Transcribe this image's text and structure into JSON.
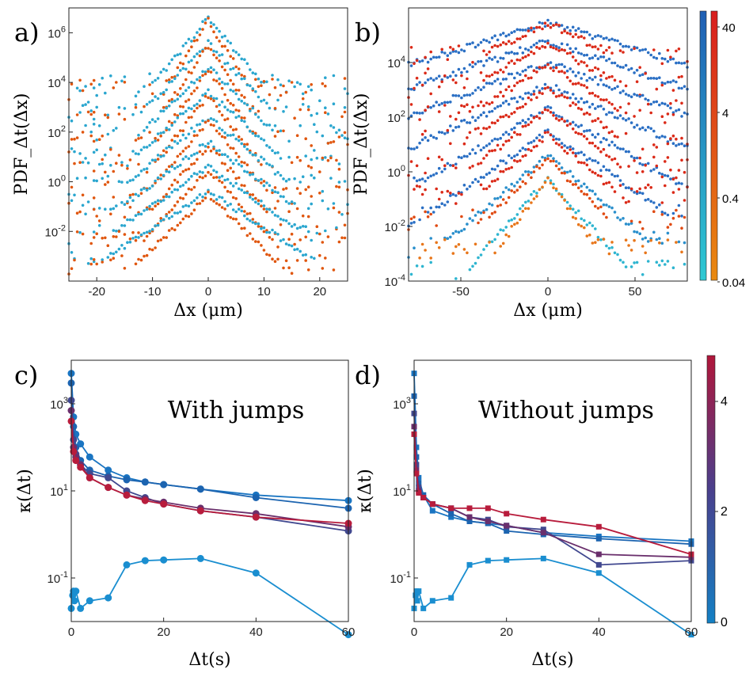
{
  "figure": {
    "colorbar_b": {
      "ticks": [
        "40",
        "4",
        "0.4",
        "0.04"
      ],
      "blue_top": "#1f5fb4",
      "blue_bottom": "#2ec9d3",
      "red_top": "#d81e1e",
      "red_bottom": "#e98a10"
    },
    "colorbar_cd": {
      "ticks": [
        "4",
        "2",
        "0"
      ],
      "top": "#b0163a",
      "mid": "#4a3f8c",
      "bottom": "#1380c4"
    }
  },
  "chart_data": [
    {
      "panel": "a)",
      "type": "scatter",
      "xlabel": "Δx (μm)",
      "ylabel": "PDF_Δt(Δx)",
      "xlim": [
        -25,
        25
      ],
      "ylim": [
        0.0001,
        10000000
      ],
      "yscale": "log",
      "xticks": [
        -20,
        -10,
        0,
        10,
        20
      ],
      "yticks": [
        "10^-2",
        "10^0",
        "10^2",
        "10^4",
        "10^6"
      ],
      "colors": {
        "blue_family": "#2aa6cf",
        "red_family": "#e0560e"
      },
      "series": [
        {
          "role": "curve",
          "color": "#2aa6cf",
          "peak": 4000000,
          "width": 1.6,
          "noise_floor": 10000
        },
        {
          "role": "curve",
          "color": "#e0560e",
          "peak": 3000000,
          "width": 1.2,
          "noise_floor": 8000
        },
        {
          "role": "curve",
          "color": "#2aa6cf",
          "peak": 400000,
          "width": 1.8,
          "noise_floor": 1000
        },
        {
          "role": "curve",
          "color": "#e0560e",
          "peak": 300000,
          "width": 1.3,
          "noise_floor": 600
        },
        {
          "role": "curve",
          "color": "#2aa6cf",
          "peak": 40000,
          "width": 2.0,
          "noise_floor": 100
        },
        {
          "role": "curve",
          "color": "#e0560e",
          "peak": 30000,
          "width": 1.4,
          "noise_floor": 60
        },
        {
          "role": "curve",
          "color": "#2aa6cf",
          "peak": 4000,
          "width": 2.2,
          "noise_floor": 10
        },
        {
          "role": "curve",
          "color": "#e0560e",
          "peak": 3000,
          "width": 1.5,
          "noise_floor": 6
        },
        {
          "role": "curve",
          "color": "#2aa6cf",
          "peak": 400,
          "width": 2.4,
          "noise_floor": 1
        },
        {
          "role": "curve",
          "color": "#e0560e",
          "peak": 300,
          "width": 1.6,
          "noise_floor": 0.5
        },
        {
          "role": "curve",
          "color": "#2aa6cf",
          "peak": 40,
          "width": 2.6,
          "noise_floor": 0.1
        },
        {
          "role": "curve",
          "color": "#e0560e",
          "peak": 30,
          "width": 1.7,
          "noise_floor": 0.05
        },
        {
          "role": "curve",
          "color": "#2aa6cf",
          "peak": 4,
          "width": 2.8,
          "noise_floor": 0.01
        },
        {
          "role": "curve",
          "color": "#e0560e",
          "peak": 3,
          "width": 1.8,
          "noise_floor": 0.005
        },
        {
          "role": "curve",
          "color": "#2aa6cf",
          "peak": 0.4,
          "width": 3.0,
          "noise_floor": 0.001
        },
        {
          "role": "curve",
          "color": "#e0560e",
          "peak": 0.3,
          "width": 2.0,
          "noise_floor": 0.0005
        }
      ]
    },
    {
      "panel": "b)",
      "type": "scatter",
      "xlabel": "Δx (μm)",
      "ylabel": "PDF_Δt(Δx)",
      "xlim": [
        -80,
        80
      ],
      "ylim": [
        0.0001,
        1000000
      ],
      "yscale": "log",
      "xticks": [
        -50,
        0,
        50
      ],
      "yticks": [
        "10^-4",
        "10^-2",
        "10^0",
        "10^2",
        "10^4"
      ],
      "colors": {
        "blue_family": "#2a6fc4",
        "red_family": "#db2a18"
      },
      "series": [
        {
          "role": "curve",
          "color": "#2a6fc4",
          "peak": 300000,
          "width": 22,
          "noise_floor": 3000
        },
        {
          "role": "curve",
          "color": "#db2a18",
          "peak": 280000,
          "width": 14,
          "noise_floor": 20000
        },
        {
          "role": "curve",
          "color": "#2a6fc4",
          "peak": 60000,
          "width": 20,
          "noise_floor": 300
        },
        {
          "role": "curve",
          "color": "#db2a18",
          "peak": 50000,
          "width": 12,
          "noise_floor": 2000
        },
        {
          "role": "curve",
          "color": "#2a6fc4",
          "peak": 10000,
          "width": 18,
          "noise_floor": 30
        },
        {
          "role": "curve",
          "color": "#db2a18",
          "peak": 8000,
          "width": 11,
          "noise_floor": 200
        },
        {
          "role": "curve",
          "color": "#2a6fc4",
          "peak": 1500,
          "width": 15,
          "noise_floor": 3
        },
        {
          "role": "curve",
          "color": "#db2a18",
          "peak": 1200,
          "width": 10,
          "noise_floor": 20
        },
        {
          "role": "curve",
          "color": "#2a6fc4",
          "peak": 200,
          "width": 12,
          "noise_floor": 0.3
        },
        {
          "role": "curve",
          "color": "#db2a18",
          "peak": 180,
          "width": 9,
          "noise_floor": 2
        },
        {
          "role": "curve",
          "color": "#2a6fc4",
          "peak": 30,
          "width": 10,
          "noise_floor": 0.03
        },
        {
          "role": "curve",
          "color": "#db2a18",
          "peak": 25,
          "width": 8,
          "noise_floor": 0.2
        },
        {
          "role": "curve",
          "color": "#2a8fcc",
          "peak": 4,
          "width": 8,
          "noise_floor": 0.003
        },
        {
          "role": "curve",
          "color": "#e04a12",
          "peak": 3,
          "width": 7,
          "noise_floor": 0.02
        },
        {
          "role": "curve",
          "color": "#2eb5d0",
          "peak": 0.6,
          "width": 6,
          "noise_floor": 0.0003
        },
        {
          "role": "curve",
          "color": "#e8761a",
          "peak": 0.5,
          "width": 5,
          "noise_floor": 0.002
        }
      ]
    },
    {
      "panel": "c)",
      "type": "line",
      "title": "With jumps",
      "xlabel": "Δt(s)",
      "ylabel": "κ(Δt)",
      "xlim": [
        0,
        60
      ],
      "ylim": [
        0.01,
        10000
      ],
      "yscale": "log",
      "xticks": [
        "0",
        "20",
        "40",
        "60"
      ],
      "yticks": [
        "10^-1",
        "10^1",
        "10^3"
      ],
      "marker": "circle",
      "series": [
        {
          "color": "#1a75c2",
          "x": [
            0,
            0.5,
            1,
            2,
            4,
            8,
            12,
            16,
            20,
            28,
            40,
            60
          ],
          "y": [
            5000,
            500,
            200,
            120,
            60,
            30,
            20,
            16,
            14,
            11,
            8,
            6
          ]
        },
        {
          "color": "#1c64b0",
          "x": [
            0,
            0.5,
            1,
            2,
            4,
            8,
            12,
            16,
            20,
            28,
            40,
            60
          ],
          "y": [
            3000,
            300,
            100,
            50,
            30,
            22,
            18,
            16,
            14,
            11,
            7,
            4
          ]
        },
        {
          "color": "#41488f",
          "x": [
            0,
            0.5,
            1,
            2,
            4,
            8,
            12,
            16,
            20,
            28,
            40,
            60
          ],
          "y": [
            1200,
            150,
            70,
            40,
            25,
            20,
            10,
            7,
            5,
            3.5,
            2.5,
            1.2
          ]
        },
        {
          "color": "#6a2f6c",
          "x": [
            0,
            0.5,
            1,
            2,
            4,
            8,
            12,
            16,
            20,
            28,
            40,
            60
          ],
          "y": [
            700,
            100,
            60,
            40,
            20,
            12,
            8,
            6.5,
            5.5,
            4,
            3,
            1.5
          ]
        },
        {
          "color": "#b81c3c",
          "x": [
            0,
            0.5,
            1,
            2,
            4,
            8,
            12,
            16,
            20,
            28,
            40,
            60
          ],
          "y": [
            400,
            80,
            50,
            35,
            20,
            12,
            8,
            6,
            5,
            3.5,
            2.5,
            1.8
          ]
        },
        {
          "color": "#1a8ed0",
          "x": [
            0,
            0.3,
            0.5,
            0.7,
            1,
            2,
            4,
            8,
            12,
            16,
            20,
            28,
            40,
            60
          ],
          "y": [
            0.02,
            0.04,
            0.05,
            0.03,
            0.05,
            0.02,
            0.03,
            0.035,
            0.2,
            0.25,
            0.26,
            0.28,
            0.13,
            0.005
          ]
        }
      ]
    },
    {
      "panel": "d)",
      "type": "line",
      "title": "Without jumps",
      "xlabel": "Δt(s)",
      "ylabel": "κ(Δt)",
      "xlim": [
        0,
        60
      ],
      "ylim": [
        0.01,
        10000
      ],
      "yscale": "log",
      "xticks": [
        "0",
        "20",
        "40",
        "60"
      ],
      "yticks": [
        "10^-1",
        "10^1",
        "10^3"
      ],
      "marker": "square",
      "series": [
        {
          "color": "#1a75c2",
          "x": [
            0,
            0.5,
            1,
            2,
            4,
            8,
            12,
            16,
            20,
            28,
            40,
            60
          ],
          "y": [
            5000,
            100,
            20,
            8,
            3.5,
            2.5,
            2.0,
            1.8,
            1.6,
            1.1,
            0.9,
            0.7
          ]
        },
        {
          "color": "#1c64b0",
          "x": [
            0,
            0.5,
            1,
            2,
            4,
            8,
            12,
            16,
            20,
            28,
            40,
            60
          ],
          "y": [
            1500,
            60,
            15,
            8,
            5,
            3,
            2,
            1.8,
            1.2,
            1.0,
            0.8,
            0.6
          ]
        },
        {
          "color": "#41488f",
          "x": [
            0,
            0.5,
            1,
            2,
            4,
            8,
            12,
            16,
            20,
            28,
            40,
            60
          ],
          "y": [
            600,
            40,
            12,
            7,
            5,
            4,
            2.5,
            2.2,
            1.5,
            1.3,
            0.2,
            0.25
          ]
        },
        {
          "color": "#6a2f6c",
          "x": [
            0,
            0.5,
            1,
            2,
            4,
            8,
            12,
            16,
            20,
            28,
            40,
            60
          ],
          "y": [
            300,
            30,
            10,
            7,
            5,
            4,
            2.5,
            2.0,
            1.6,
            1.1,
            0.35,
            0.3
          ]
        },
        {
          "color": "#b81c3c",
          "x": [
            0,
            0.5,
            1,
            2,
            4,
            8,
            12,
            16,
            20,
            28,
            40,
            60
          ],
          "y": [
            200,
            25,
            9,
            7,
            5,
            4,
            4,
            4,
            3,
            2.2,
            1.5,
            0.35
          ]
        },
        {
          "color": "#1a8ed0",
          "x": [
            0,
            0.3,
            0.5,
            0.7,
            1,
            2,
            4,
            8,
            12,
            16,
            20,
            28,
            40,
            60
          ],
          "y": [
            0.02,
            0.04,
            0.05,
            0.03,
            0.05,
            0.02,
            0.03,
            0.035,
            0.2,
            0.25,
            0.26,
            0.28,
            0.13,
            0.005
          ]
        }
      ]
    }
  ]
}
